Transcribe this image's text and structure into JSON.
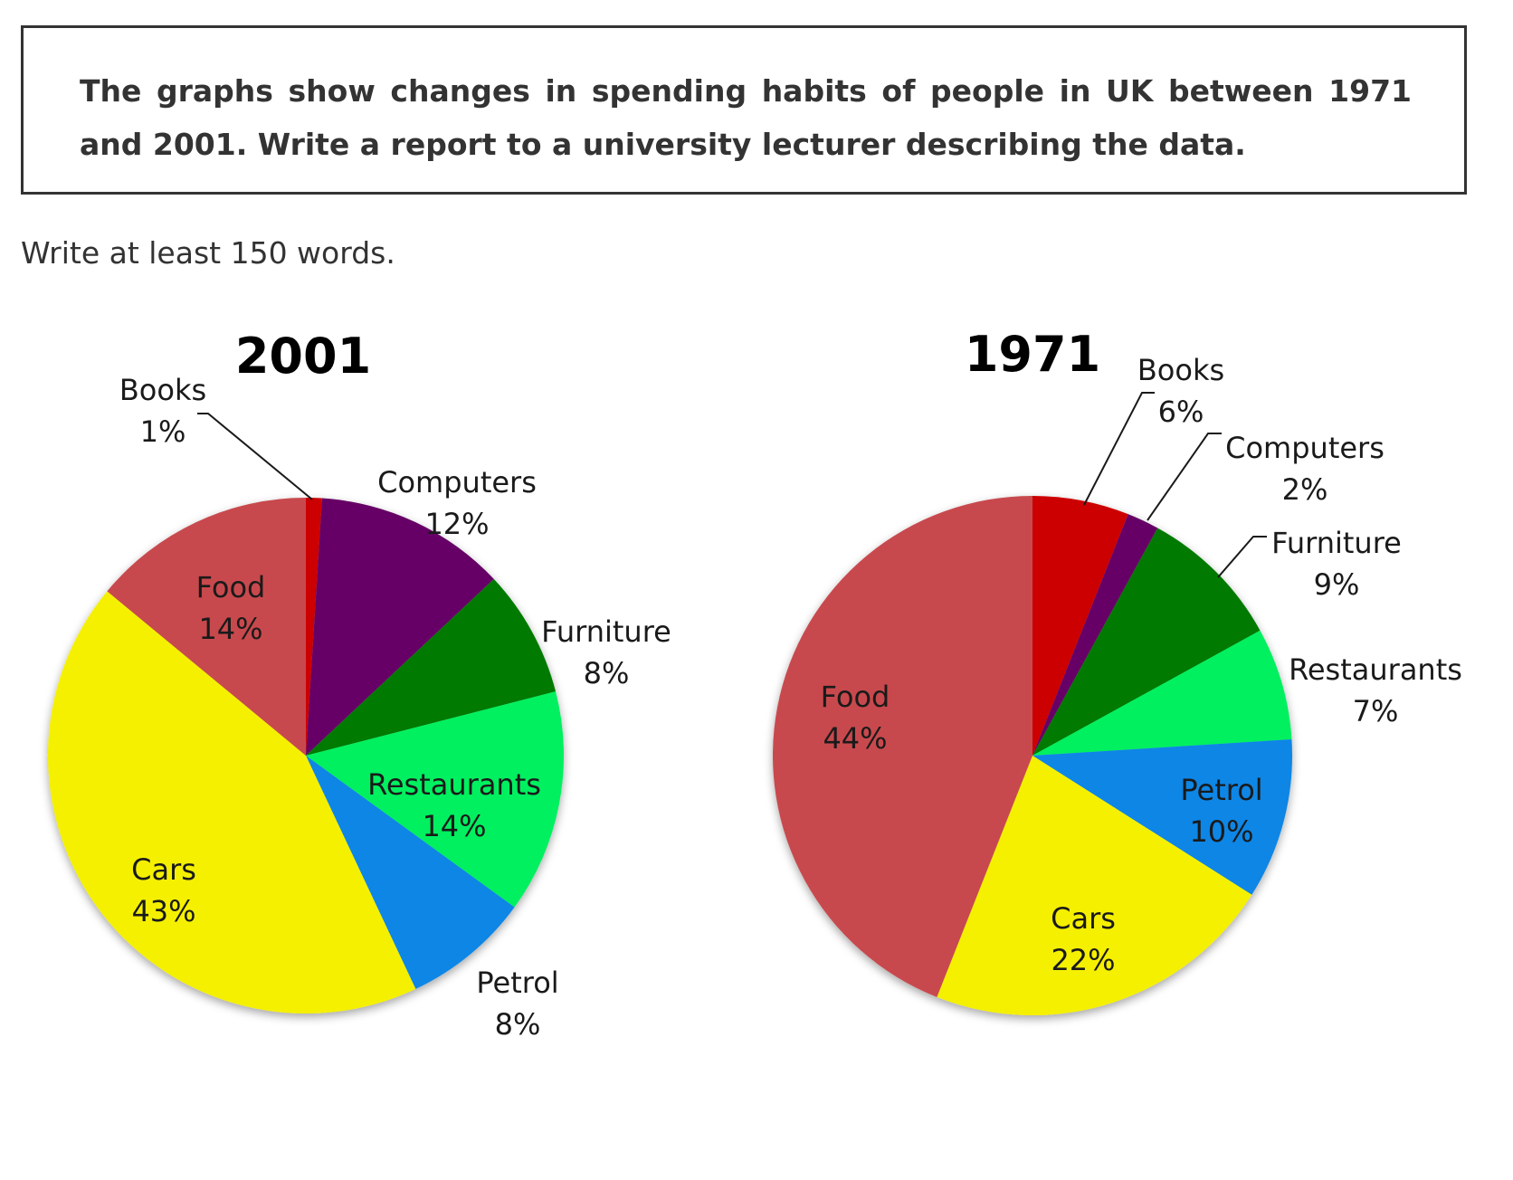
{
  "task": {
    "prompt": "The graphs show changes in spending habits of people in UK between 1971 and 2001. Write a report to a university lecturer describing the data.",
    "instruction": "Write at least 150 words."
  },
  "chart_data": [
    {
      "type": "pie",
      "title": "2001",
      "slices": [
        {
          "label": "Books",
          "value": 1,
          "value_label": "1%",
          "color": "#cc0000"
        },
        {
          "label": "Computers",
          "value": 12,
          "value_label": "12%",
          "color": "#660066"
        },
        {
          "label": "Furniture",
          "value": 8,
          "value_label": "8%",
          "color": "#007a00"
        },
        {
          "label": "Restaurants",
          "value": 14,
          "value_label": "14%",
          "color": "#00f060"
        },
        {
          "label": "Petrol",
          "value": 8,
          "value_label": "8%",
          "color": "#0a86e6"
        },
        {
          "label": "Cars",
          "value": 43,
          "value_label": "43%",
          "color": "#f5f000"
        },
        {
          "label": "Food",
          "value": 14,
          "value_label": "14%",
          "color": "#c84a4e"
        }
      ]
    },
    {
      "type": "pie",
      "title": "1971",
      "slices": [
        {
          "label": "Books",
          "value": 6,
          "value_label": "6%",
          "color": "#cc0000"
        },
        {
          "label": "Computers",
          "value": 2,
          "value_label": "2%",
          "color": "#660066"
        },
        {
          "label": "Furniture",
          "value": 9,
          "value_label": "9%",
          "color": "#007a00"
        },
        {
          "label": "Restaurants",
          "value": 7,
          "value_label": "7%",
          "color": "#00f060"
        },
        {
          "label": "Petrol",
          "value": 10,
          "value_label": "10%",
          "color": "#0a86e6"
        },
        {
          "label": "Cars",
          "value": 22,
          "value_label": "22%",
          "color": "#f5f000"
        },
        {
          "label": "Food",
          "value": 44,
          "value_label": "44%",
          "color": "#c84a4e"
        }
      ]
    }
  ]
}
